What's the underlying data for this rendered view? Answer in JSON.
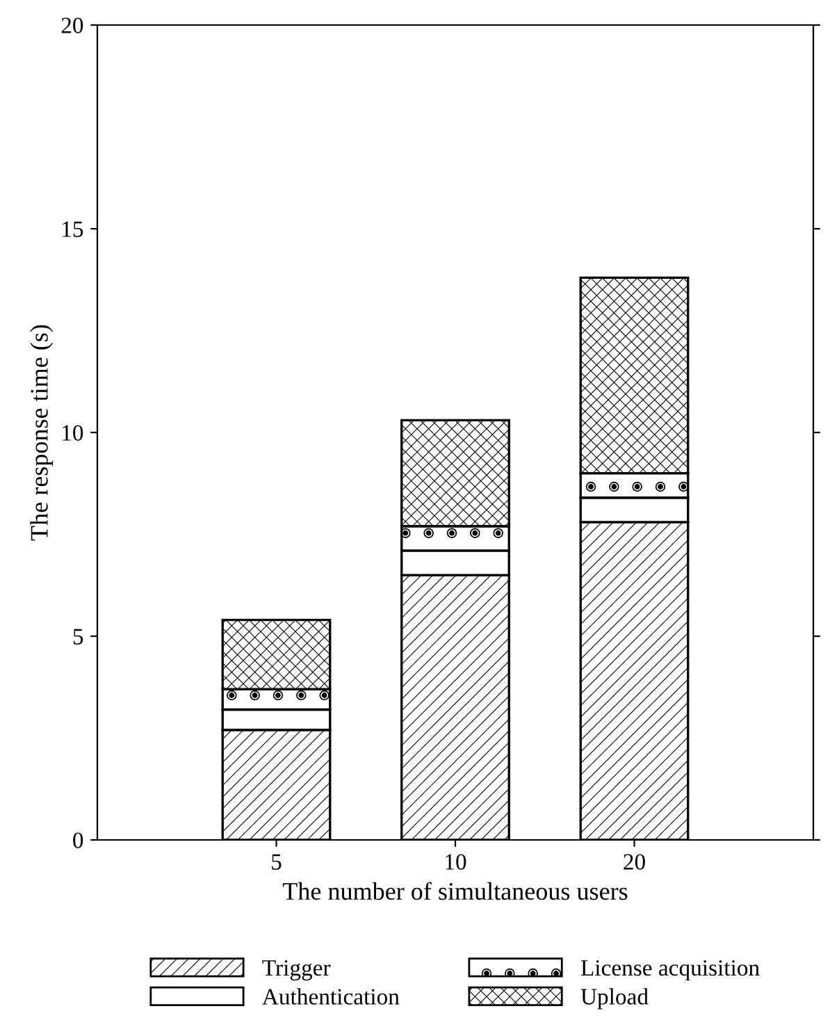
{
  "chart_data": {
    "type": "bar",
    "stacked": true,
    "xlabel": "The number of simultaneous users",
    "ylabel": "The response time (s)",
    "categories": [
      "5",
      "10",
      "20"
    ],
    "series": [
      {
        "name": "Trigger",
        "color": "#000000",
        "values": [
          2.7,
          6.5,
          7.8
        ]
      },
      {
        "name": "Authentication",
        "color": "#ffffff",
        "values": [
          0.5,
          0.6,
          0.6
        ]
      },
      {
        "name": "License acquisition",
        "color": "#000000",
        "values": [
          0.5,
          0.6,
          0.6
        ]
      },
      {
        "name": "Upload",
        "color": "#000000",
        "values": [
          1.7,
          2.6,
          4.8
        ]
      }
    ],
    "ylim": [
      0,
      20
    ],
    "yticks": [
      0,
      5,
      10,
      15,
      20
    ],
    "grid": false,
    "legend": "bottom"
  }
}
